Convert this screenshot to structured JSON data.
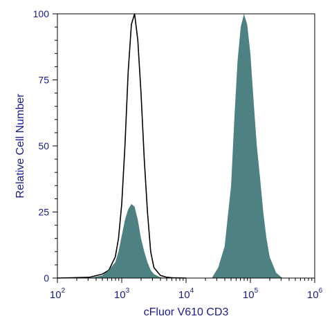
{
  "chart_data": {
    "type": "area",
    "xlabel": "cFluor V610 CD3",
    "ylabel": "Relative Cell Number",
    "x_scale": "log",
    "xlim": [
      100,
      1000000
    ],
    "ylim": [
      0,
      100
    ],
    "x_ticks": [
      {
        "value": 100,
        "base": "10",
        "exp": "2"
      },
      {
        "value": 1000,
        "base": "10",
        "exp": "3"
      },
      {
        "value": 10000,
        "base": "10",
        "exp": "4"
      },
      {
        "value": 100000,
        "base": "10",
        "exp": "5"
      },
      {
        "value": 1000000,
        "base": "10",
        "exp": "6"
      }
    ],
    "y_ticks": [
      {
        "value": 0,
        "label": "0"
      },
      {
        "value": 25,
        "label": "25"
      },
      {
        "value": 50,
        "label": "50"
      },
      {
        "value": 75,
        "label": "75"
      },
      {
        "value": 100,
        "label": "100"
      }
    ],
    "grid": false,
    "legend": "none",
    "series": [
      {
        "style": "outline",
        "color": "#000000",
        "x": [
          100,
          316,
          501,
          631,
          794,
          891,
          1000,
          1122,
          1259,
          1413,
          1585,
          1778,
          1995,
          2239,
          2512,
          2818,
          3162,
          3981,
          5012,
          6310,
          10000
        ],
        "y": [
          0,
          0.3,
          1.5,
          3,
          8,
          15,
          28,
          50,
          78,
          96,
          100,
          90,
          70,
          45,
          25,
          10,
          4,
          1,
          0.3,
          0.1,
          0
        ]
      },
      {
        "style": "filled",
        "color": "#4e8282",
        "x": [
          316,
          501,
          631,
          794,
          891,
          1000,
          1122,
          1259,
          1413,
          1585,
          1778,
          1995,
          2239,
          2512,
          2818,
          3162,
          3981,
          5012
        ],
        "y": [
          0,
          1,
          3,
          6,
          10,
          16,
          22,
          26,
          28,
          27,
          22,
          15,
          10,
          6,
          3,
          1.5,
          0.3,
          0
        ]
      },
      {
        "style": "filled",
        "color": "#4e8282",
        "x": [
          25119,
          31623,
          39811,
          50119,
          56234,
          63096,
          70795,
          79433,
          89125,
          100000,
          112202,
          125893,
          141254,
          158489,
          177828,
          199526,
          251189,
          316228
        ],
        "y": [
          0,
          4,
          12,
          35,
          60,
          82,
          95,
          100,
          96,
          85,
          67,
          50,
          38,
          25,
          15,
          8,
          2,
          0
        ]
      }
    ]
  }
}
